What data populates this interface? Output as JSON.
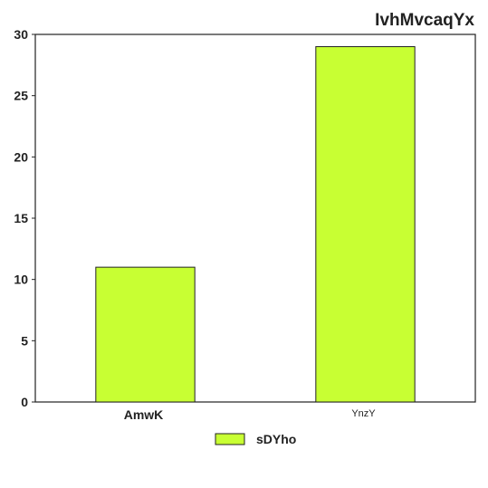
{
  "chart_data": {
    "type": "bar",
    "title": "IvhMvcaqYx",
    "xlabel": "",
    "ylabel": "",
    "categories": [
      "AmwK",
      "YnzY"
    ],
    "series": [
      {
        "name": "sDYho",
        "values": [
          11,
          29
        ],
        "color": "#c8ff33"
      }
    ],
    "ylim": [
      0,
      30
    ],
    "yticks": [
      "0",
      "5",
      "10",
      "15",
      "20",
      "25",
      "30"
    ],
    "grid": false,
    "legend_position": "bottom-center"
  }
}
